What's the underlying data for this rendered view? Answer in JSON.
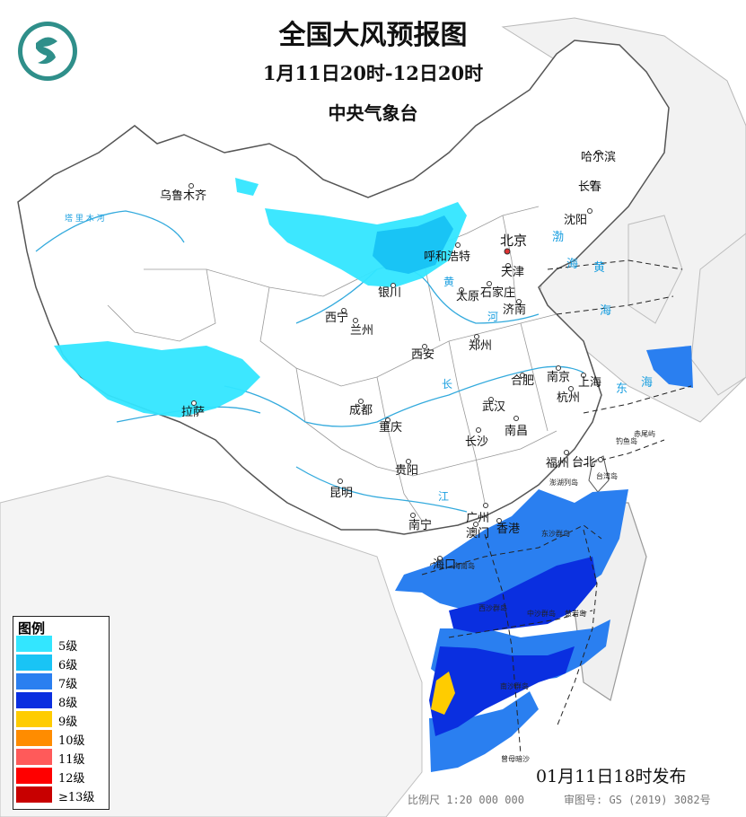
{
  "title": "全国大风预报图",
  "period": "1月11日20时-12日20时",
  "agency": "中央气象台",
  "issued": "01月11日18时发布",
  "scale": "比例尺 1:20 000 000",
  "approval": "审图号: GS (2019) 3082号",
  "legend": {
    "title": "图例",
    "items": [
      {
        "label": "5级",
        "color": "#33e6ff"
      },
      {
        "label": "6级",
        "color": "#19c4f5"
      },
      {
        "label": "7级",
        "color": "#2a7ff0"
      },
      {
        "label": "8级",
        "color": "#0a2fe0"
      },
      {
        "label": "9级",
        "color": "#ffcc00"
      },
      {
        "label": "10级",
        "color": "#ff8c00"
      },
      {
        "label": "11级",
        "color": "#ff5a5a"
      },
      {
        "label": "12级",
        "color": "#ff0000"
      },
      {
        "label": "≥13级",
        "color": "#c80000"
      }
    ]
  },
  "cities": {
    "urumqi": "乌鲁木齐",
    "lhasa": "拉萨",
    "xining": "西宁",
    "lanzhou": "兰州",
    "yinchuan": "银川",
    "hohhot": "呼和浩特",
    "beijing": "北京",
    "tianjin": "天津",
    "taiyuan": "太原",
    "shijiazhuang": "石家庄",
    "jinan": "济南",
    "zhengzhou": "郑州",
    "xian": "西安",
    "chengdu": "成都",
    "chongqing": "重庆",
    "guiyang": "贵阳",
    "kunming": "昆明",
    "nanning": "南宁",
    "guangzhou": "广州",
    "hongkong": "香港",
    "macao": "澳门",
    "haikou": "海口",
    "changsha": "长沙",
    "wuhan": "武汉",
    "nanchang": "南昌",
    "hefei": "合肥",
    "nanjing": "南京",
    "shanghai": "上海",
    "hangzhou": "杭州",
    "fuzhou": "福州",
    "taibei": "台北",
    "shenyang": "沈阳",
    "changchun": "长春",
    "harbin": "哈尔滨"
  },
  "small_labels": {
    "hainan": "海南岛",
    "taiwan": "台湾岛",
    "diaoyu": "钓鱼岛",
    "chiwei": "赤尾屿",
    "penghu": "澎湖列岛",
    "dongsha": "东沙群岛",
    "xisha": "西沙群岛",
    "zhongsha": "中沙群岛",
    "huangyan": "黄岩岛",
    "nansha": "南沙群岛",
    "zengmu": "曾母暗沙"
  },
  "water_labels": {
    "bohai": "渤",
    "bohai2": "海",
    "huanghai": "黄",
    "huanghai2": "海",
    "donghai": "东",
    "donghai2": "海",
    "huang_river": "黄",
    "he": "河",
    "chang": "长",
    "jiang": "江",
    "tarim": "塔 里 木 河"
  }
}
